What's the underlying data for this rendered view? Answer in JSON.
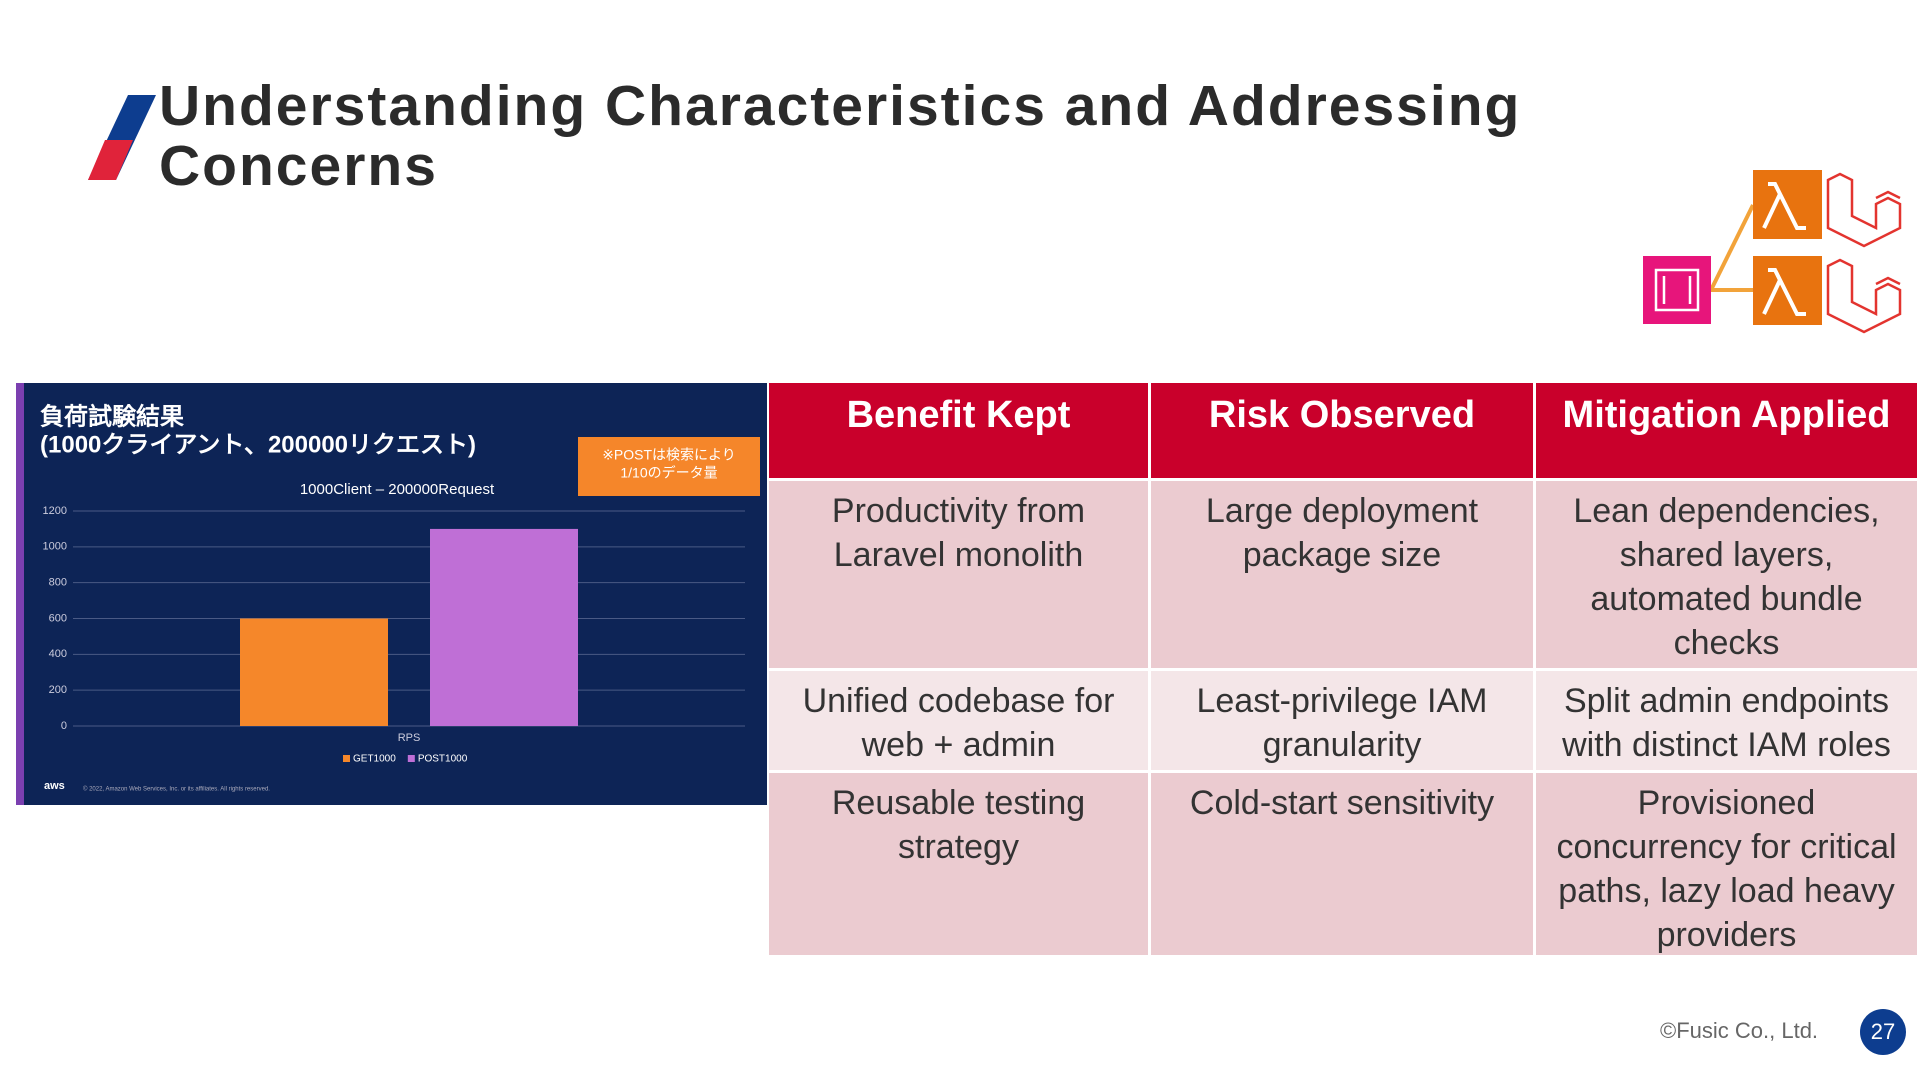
{
  "header": {
    "title": "Understanding Characteristics and Addressing Concerns"
  },
  "figure": {
    "heading": [
      "負荷試験結果",
      "(1000クライアント、200000リクエスト)"
    ],
    "note": [
      "※POSTは検索により",
      "1/10のデータ量"
    ],
    "logo": "aws",
    "copyright": "© 2022, Amazon Web Services, Inc. or its affiliates. All rights reserved."
  },
  "chart_data": {
    "type": "bar",
    "title": "1000Client – 200000Request",
    "categories": [
      "RPS"
    ],
    "series": [
      {
        "name": "GET1000",
        "color": "#f5872a",
        "values": [
          600
        ]
      },
      {
        "name": "POST1000",
        "color": "#bf6fd6",
        "values": [
          1100
        ]
      }
    ],
    "ylim": [
      0,
      1200
    ],
    "yticks": [
      0,
      200,
      400,
      600,
      800,
      1000,
      1200
    ],
    "grid": true
  },
  "table": {
    "columns": [
      "Benefit Kept",
      "Risk Observed",
      "Mitigation Applied"
    ],
    "rows": [
      [
        "Productivity from Laravel monolith",
        "Large deployment package size",
        "Lean dependencies, shared layers, automated bundle checks"
      ],
      [
        "Unified codebase for web + admin",
        "Least-privilege IAM granularity",
        "Split admin endpoints with distinct IAM roles"
      ],
      [
        "Reusable testing strategy",
        "Cold-start sensitivity",
        "Provisioned concurrency for critical paths, lazy load heavy providers"
      ]
    ]
  },
  "footer": {
    "copyright": "©Fusic Co., Ltd.",
    "page": "27"
  }
}
